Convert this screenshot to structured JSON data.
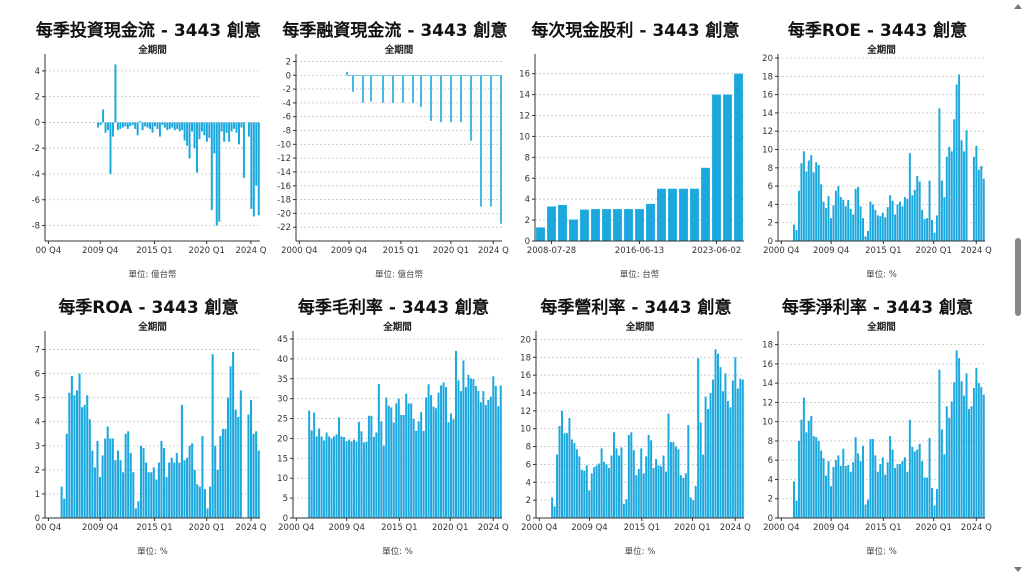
{
  "colors": {
    "bar": "#1aa8de",
    "grid": "#c8c8c8",
    "axis": "#333333"
  },
  "chart_data": [
    {
      "type": "bar",
      "title": "每季投資現金流 - 3443 創意",
      "subtitle": "全期間",
      "unit": "單位: 億台幣",
      "ylim": [
        -9.2,
        5
      ],
      "yticks": [
        -8,
        -6,
        -4,
        -2,
        0,
        2,
        4
      ],
      "xticks": [
        "00 Q4",
        "2009 Q4",
        "2015 Q1",
        "2020 Q1",
        "2024 Q"
      ],
      "grid": true,
      "values": [
        null,
        null,
        null,
        null,
        null,
        null,
        null,
        null,
        null,
        null,
        null,
        null,
        null,
        null,
        null,
        null,
        null,
        null,
        null,
        null,
        null,
        -0.4,
        -0.2,
        1.0,
        -0.8,
        -0.6,
        -4.0,
        -1.1,
        4.5,
        -0.6,
        -0.5,
        -0.4,
        -0.3,
        -0.5,
        -0.3,
        -0.2,
        -0.5,
        -1.0,
        0.1,
        -0.6,
        -0.3,
        -0.4,
        -0.5,
        -0.8,
        -0.3,
        -0.5,
        -1.1,
        -0.2,
        -0.4,
        -0.6,
        -0.5,
        -0.4,
        -0.6,
        -0.5,
        -0.7,
        -0.6,
        -1.4,
        -1.8,
        -2.8,
        -0.7,
        -2.0,
        -3.9,
        -1.3,
        -0.7,
        -1.0,
        -1.5,
        -1.2,
        -6.8,
        -2.4,
        -8.0,
        -7.7,
        -0.7,
        -1.5,
        -0.8,
        -1.5,
        -0.7,
        -0.5,
        -0.8,
        -1.7,
        -0.4,
        -4.3,
        null,
        -1.1,
        -6.7,
        -7.3,
        -4.9,
        -7.2
      ]
    },
    {
      "type": "bar",
      "title": "每季融資現金流 - 3443 創意",
      "subtitle": "全期間",
      "unit": "單位: 億台幣",
      "ylim": [
        -24,
        2.5
      ],
      "yticks": [
        -22,
        -20,
        -18,
        -16,
        -14,
        -12,
        -10,
        -8,
        -6,
        -4,
        -2,
        0,
        2
      ],
      "xticks": [
        "2000 Q4",
        "2009 Q4",
        "2015 Q1",
        "2020 Q1",
        "2024 Q"
      ],
      "grid": true,
      "values": [
        null,
        null,
        null,
        null,
        null,
        null,
        null,
        null,
        null,
        null,
        null,
        null,
        null,
        null,
        null,
        null,
        null,
        null,
        null,
        null,
        null,
        null,
        null,
        null,
        null,
        0.5,
        -0.1,
        -0.1,
        -2.4,
        -0.1,
        -0.1,
        -0.1,
        -0.1,
        -4.0,
        -0.1,
        -0.1,
        -0.1,
        -3.8,
        -0.1,
        -0.1,
        -0.1,
        -0.1,
        -0.1,
        -4.0,
        -0.1,
        -0.1,
        -0.1,
        -0.1,
        -4.0,
        -0.1,
        -0.1,
        -0.1,
        -0.1,
        -4.0,
        -0.1,
        -0.1,
        -0.1,
        -0.1,
        -4.0,
        -0.1,
        -0.1,
        -0.1,
        -4.6,
        -0.1,
        -0.1,
        -0.1,
        -0.1,
        -6.6,
        -0.1,
        -0.1,
        -0.1,
        -0.1,
        -6.8,
        -0.1,
        -0.1,
        -0.1,
        -0.1,
        -6.8,
        -0.1,
        -0.1,
        -0.1,
        -0.1,
        -6.8,
        -0.1,
        -0.1,
        -0.1,
        -0.1,
        -9.5,
        -0.1,
        -0.1,
        -0.1,
        -0.1,
        -19.0,
        -0.1,
        -0.1,
        -0.1,
        -0.1,
        -19.0,
        -0.1,
        -0.1,
        -0.1,
        -0.1,
        -21.5
      ]
    },
    {
      "type": "bar",
      "title": "每次現金股利 - 3443 創意",
      "subtitle": "",
      "unit": "單位: 台幣",
      "ylim": [
        0,
        17.5
      ],
      "yticks": [
        0,
        2,
        4,
        6,
        8,
        10,
        12,
        14,
        16
      ],
      "xticks": [
        "2008-07-28",
        "2016-06-13",
        "2023-06-02"
      ],
      "grid": true,
      "values": [
        1.3,
        3.3,
        3.45,
        2.05,
        3.0,
        3.05,
        3.05,
        3.05,
        3.05,
        3.05,
        3.55,
        5.0,
        5.0,
        5.0,
        5.0,
        7.0,
        14.0,
        14.0,
        16.0
      ]
    },
    {
      "type": "bar",
      "title": "每季ROE - 3443 創意",
      "subtitle": "全期間",
      "unit": "單位: %",
      "ylim": [
        0,
        20
      ],
      "yticks": [
        0,
        2,
        4,
        6,
        8,
        10,
        12,
        14,
        16,
        18,
        20
      ],
      "xticks": [
        "2000 Q4",
        "2009 Q4",
        "2015 Q1",
        "2020 Q1",
        "2024 Q"
      ],
      "grid": true,
      "values": [
        null,
        null,
        null,
        null,
        null,
        null,
        1.8,
        1.2,
        5.5,
        8.5,
        9.8,
        7.6,
        8.8,
        9.4,
        7.5,
        8.6,
        8.3,
        6.2,
        4.3,
        3.6,
        4.9,
        2.5,
        3.9,
        5.5,
        6.0,
        4.8,
        4.5,
        3.8,
        4.5,
        3.5,
        2.9,
        5.7,
        5.9,
        3.8,
        2.5,
        0.5,
        1.1,
        4.3,
        4.0,
        3.4,
        2.8,
        2.7,
        3.1,
        2.6,
        3.7,
        5.0,
        4.4,
        2.9,
        4.0,
        4.3,
        3.8,
        4.8,
        4.6,
        9.6,
        5.0,
        5.6,
        7.1,
        6.5,
        3.4,
        2.4,
        2.5,
        6.6,
        2.3,
        0.9,
        2.8,
        14.5,
        6.6,
        4.8,
        9.2,
        10.3,
        9.8,
        13.3,
        17.1,
        18.2,
        11.0,
        9.8,
        12.1,
        null,
        null,
        9.2,
        10.4,
        7.8,
        8.2,
        6.8
      ]
    },
    {
      "type": "bar",
      "title": "每季ROA - 3443 創意",
      "subtitle": "全期間",
      "unit": "單位: %",
      "ylim": [
        0,
        7.6
      ],
      "yticks": [
        0,
        1,
        2,
        3,
        4,
        5,
        6,
        7
      ],
      "xticks": [
        "00 Q4",
        "2009 Q4",
        "2015 Q1",
        "2020 Q1",
        "2024 Q"
      ],
      "grid": true,
      "values": [
        null,
        null,
        null,
        null,
        null,
        null,
        1.3,
        0.8,
        3.5,
        5.2,
        5.9,
        5.1,
        5.3,
        6.0,
        4.6,
        4.7,
        5.1,
        4.1,
        2.8,
        2.1,
        3.2,
        1.7,
        2.6,
        3.3,
        3.8,
        3.3,
        3.3,
        2.4,
        2.8,
        2.4,
        1.9,
        3.5,
        3.6,
        2.7,
        1.9,
        0.4,
        0.7,
        3.0,
        2.9,
        2.3,
        1.9,
        1.9,
        2.1,
        1.6,
        2.3,
        3.2,
        2.9,
        1.7,
        2.3,
        2.5,
        2.3,
        2.7,
        2.3,
        4.7,
        2.4,
        2.5,
        3.0,
        3.1,
        2.0,
        1.4,
        1.3,
        3.4,
        1.2,
        0.4,
        1.3,
        6.8,
        3.0,
        2.0,
        3.4,
        3.7,
        3.7,
        5.0,
        6.3,
        6.9,
        4.5,
        4.2,
        5.3,
        null,
        null,
        4.3,
        4.9,
        3.5,
        3.6,
        2.8
      ]
    },
    {
      "type": "bar",
      "title": "每季毛利率 - 3443 創意",
      "subtitle": "全期間",
      "unit": "單位: %",
      "ylim": [
        0,
        46
      ],
      "yticks": [
        0,
        5,
        10,
        15,
        20,
        25,
        30,
        35,
        40,
        45
      ],
      "xticks": [
        "2000 Q4",
        "2009 Q4",
        "2015 Q1",
        "2020 Q1",
        "2024 Q"
      ],
      "grid": true,
      "values": [
        null,
        null,
        null,
        null,
        null,
        null,
        27,
        22,
        26.5,
        20.5,
        22.5,
        20.5,
        19.5,
        21.5,
        20.5,
        20,
        20.5,
        21,
        25.3,
        20.5,
        20.3,
        19.3,
        19.7,
        19.3,
        19.7,
        19.2,
        24.2,
        21.8,
        19,
        19.2,
        25.7,
        25.7,
        20.4,
        21.5,
        33.7,
        24.3,
        18.2,
        30.3,
        28.2,
        27.8,
        24,
        28.8,
        30,
        25.9,
        25.9,
        31.2,
        28.8,
        28.8,
        24.9,
        21.9,
        24.3,
        26.6,
        21.9,
        30.3,
        33.6,
        30.9,
        28,
        27.6,
        31.5,
        33.3,
        34.1,
        32.9,
        24.1,
        26.3,
        24.8,
        42,
        34.6,
        31.9,
        39.6,
        32.9,
        36,
        35.1,
        34.9,
        33.2,
        31.9,
        29.1,
        31.9,
        28.4,
        29.7,
        30.5,
        35.6,
        33.2,
        28.1,
        33.3
      ]
    },
    {
      "type": "bar",
      "title": "每季營利率 - 3443 創意",
      "subtitle": "全期間",
      "unit": "單位: %",
      "ylim": [
        0,
        20.5
      ],
      "yticks": [
        0,
        2,
        4,
        6,
        8,
        10,
        12,
        14,
        16,
        18,
        20
      ],
      "xticks": [
        "2000 Q4",
        "2009 Q4",
        "2015 Q1",
        "2020 Q1",
        "2024 Q"
      ],
      "grid": true,
      "values": [
        null,
        null,
        null,
        null,
        null,
        null,
        2.3,
        1.3,
        7.1,
        10.3,
        12,
        9.5,
        9.5,
        11.2,
        8.8,
        8.4,
        7.7,
        6.9,
        5.4,
        5.3,
        5.9,
        3.1,
        5.0,
        5.7,
        5.9,
        6.1,
        7.8,
        6.3,
        6.0,
        5.6,
        7.0,
        9.6,
        7.8,
        7.0,
        7.9,
        1.6,
        2.1,
        9.3,
        9.6,
        7.6,
        4.8,
        5.5,
        7.8,
        5.0,
        6.9,
        9.3,
        8.7,
        5.6,
        6.6,
        5.9,
        5.8,
        7.0,
        5.2,
        11.7,
        8.5,
        8.5,
        8.0,
        7.7,
        4.8,
        4.5,
        5.0,
        10.4,
        2.3,
        2.0,
        3.6,
        17.9,
        10.7,
        7.1,
        13.6,
        12.2,
        14.0,
        15.5,
        18.9,
        18.4,
        16.9,
        14.2,
        16.2,
        13.1,
        12.4,
        15.4,
        18.0,
        14.5,
        15.6,
        15.5
      ]
    },
    {
      "type": "bar",
      "title": "每季淨利率 - 3443 創意",
      "subtitle": "全期間",
      "unit": "單位: %",
      "ylim": [
        0,
        19
      ],
      "yticks": [
        0,
        2,
        4,
        6,
        8,
        10,
        12,
        14,
        16,
        18
      ],
      "xticks": [
        "2000 Q4",
        "2009 Q4",
        "2015 Q1",
        "2020 Q1",
        "2024 Q"
      ],
      "grid": true,
      "values": [
        null,
        null,
        null,
        null,
        null,
        null,
        3.8,
        1.8,
        8.0,
        10.2,
        12.5,
        8.9,
        10.1,
        10.6,
        8.5,
        8.4,
        8.0,
        7.0,
        6.2,
        4.4,
        5.9,
        3.3,
        5.3,
        6.0,
        6.5,
        5.4,
        7.2,
        5.4,
        5.5,
        4.8,
        5.8,
        8.4,
        6.7,
        5.9,
        7.5,
        1.4,
        1.9,
        8.2,
        8.2,
        6.5,
        4.8,
        5.6,
        6.3,
        4.5,
        5.8,
        8.5,
        7.1,
        5.2,
        5.6,
        5.6,
        5.9,
        6.3,
        4.8,
        10.2,
        7.4,
        6.9,
        7.1,
        7.7,
        5.9,
        4.2,
        4.2,
        8.3,
        3.1,
        1.3,
        3.0,
        15.4,
        9.2,
        6.6,
        11.6,
        10.4,
        12.1,
        14.1,
        17.4,
        16.6,
        14.2,
        12.7,
        15.0,
        11.3,
        11.6,
        13.5,
        15.6,
        14.0,
        13.6,
        12.8
      ]
    }
  ]
}
